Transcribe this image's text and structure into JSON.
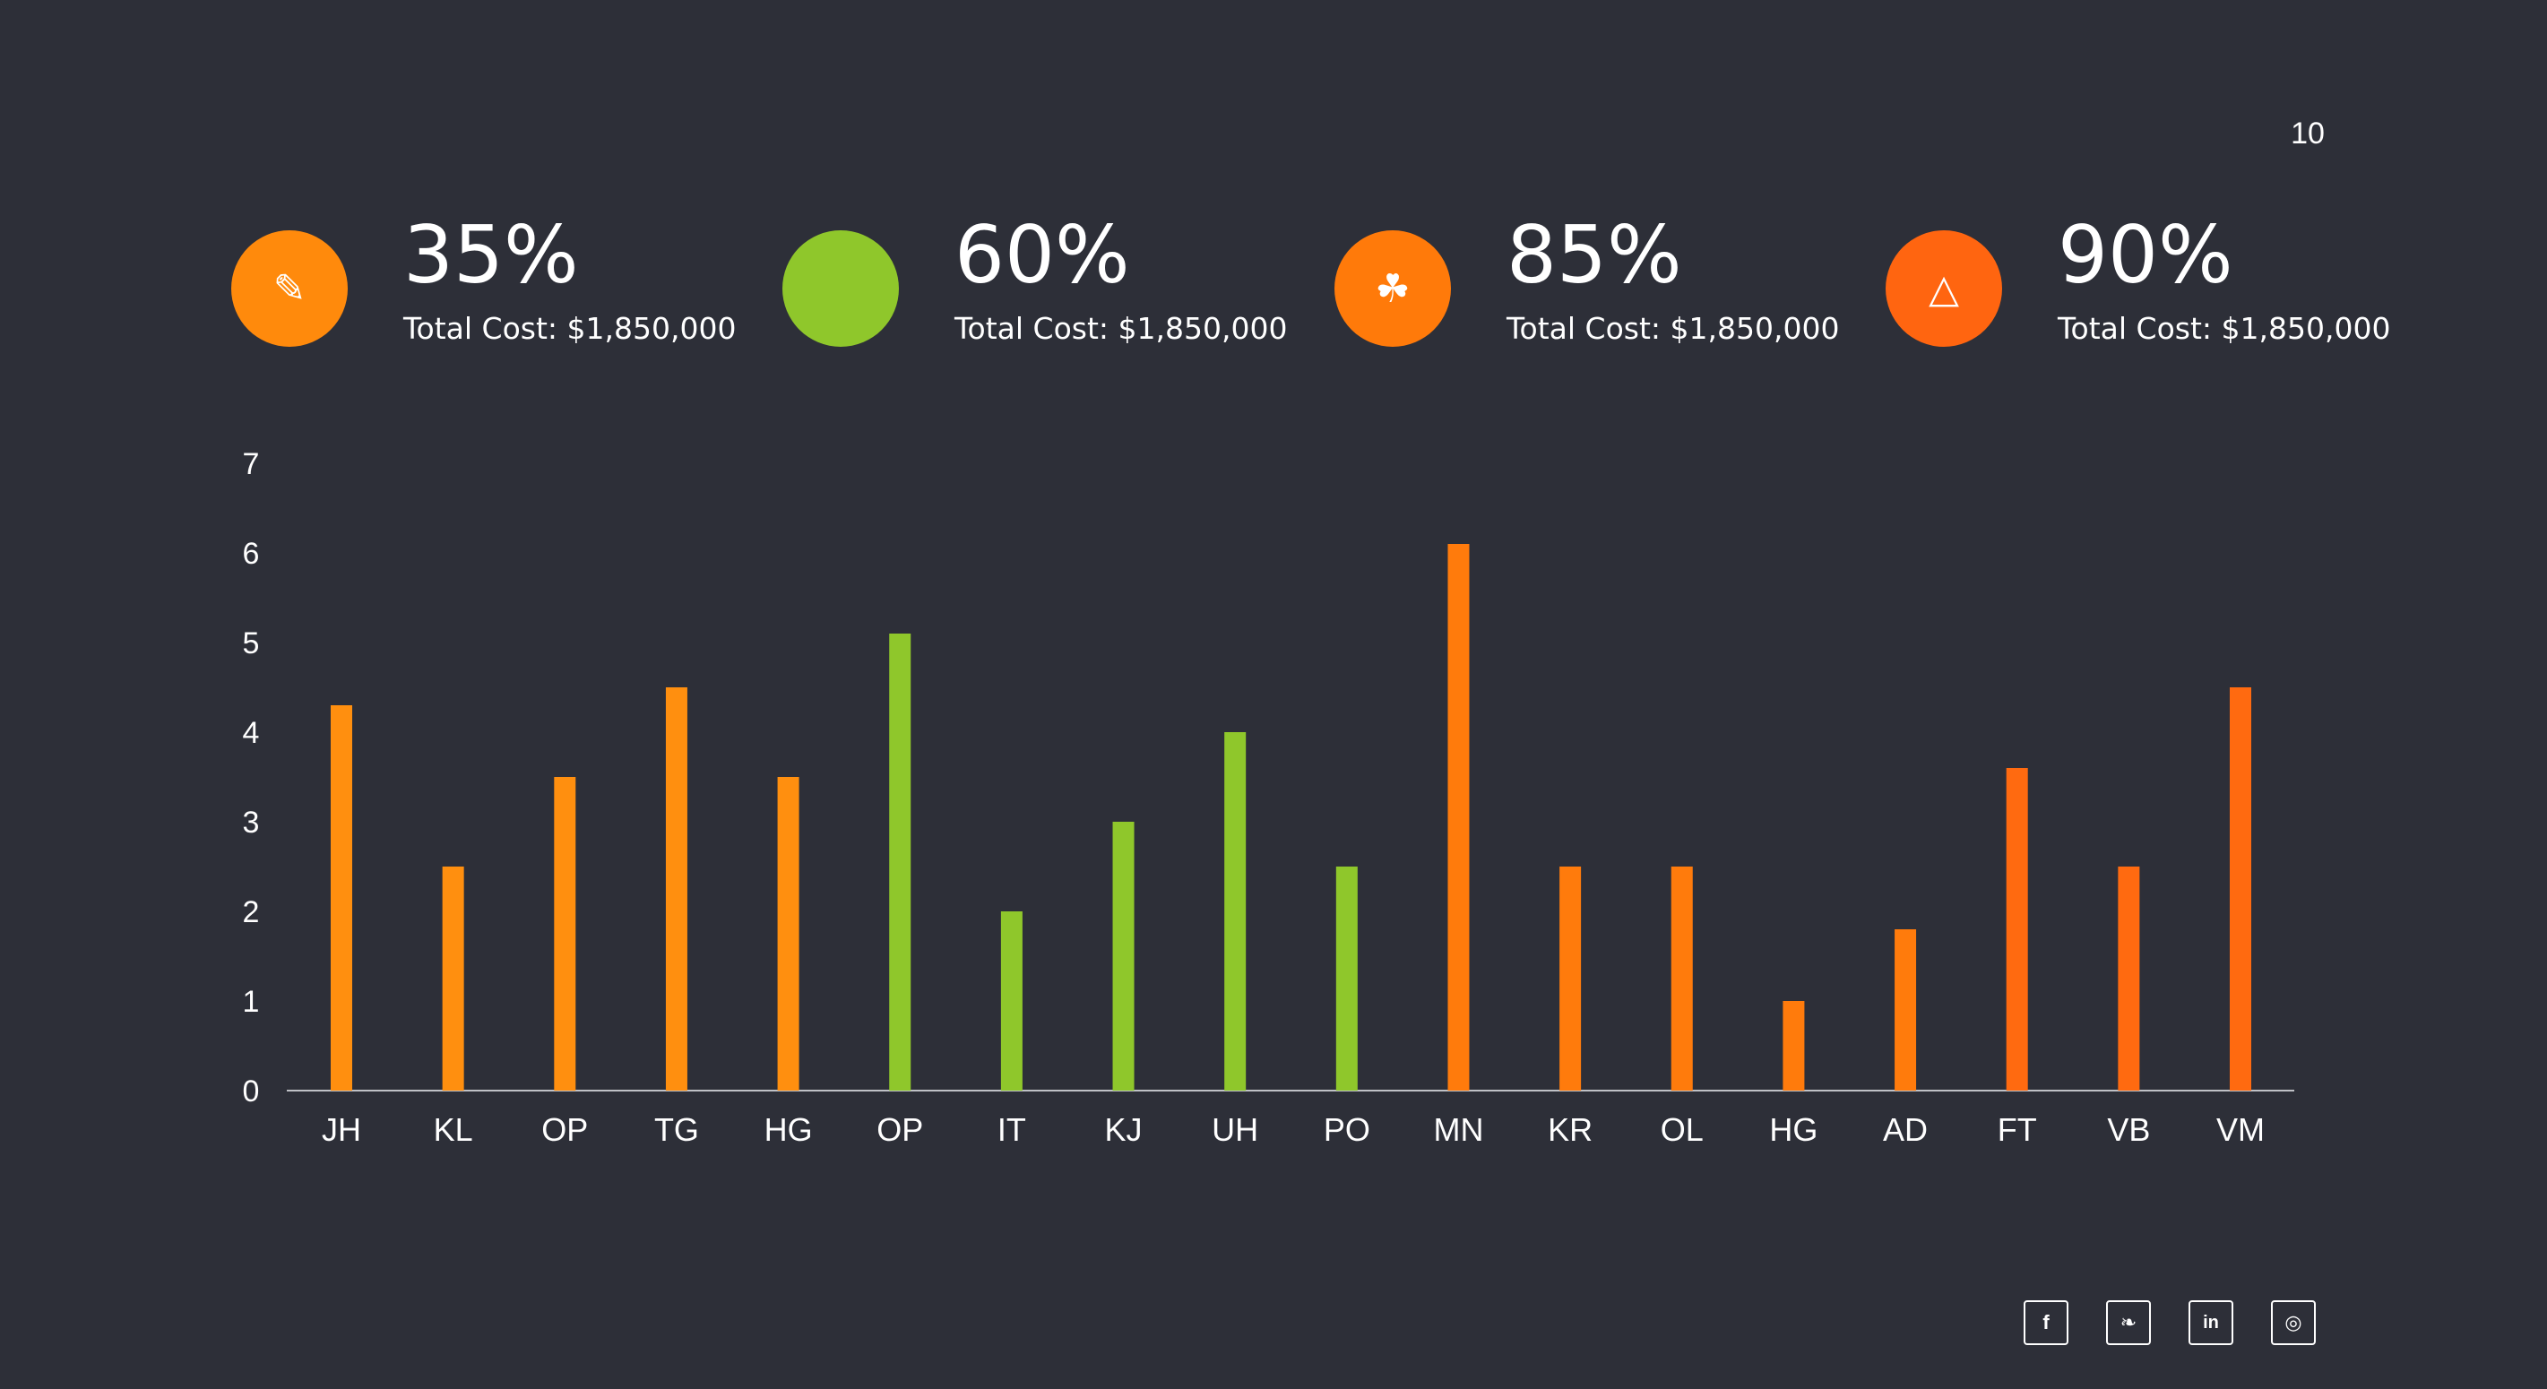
{
  "page_number": "10",
  "stats": [
    {
      "percent": "35%",
      "cost": "Total Cost: $1,850,000",
      "icon": "pen-icon",
      "glyph": "✎",
      "color": "#ff8a0c"
    },
    {
      "percent": "60%",
      "cost": "Total Cost: $1,850,000",
      "icon": "blank-icon",
      "glyph": "",
      "color": "#8fc72b"
    },
    {
      "percent": "85%",
      "cost": "Total Cost: $1,850,000",
      "icon": "tree-icon",
      "glyph": "☘",
      "color": "#ff7a0a"
    },
    {
      "percent": "90%",
      "cost": "Total Cost: $1,850,000",
      "icon": "triangle-icon",
      "glyph": "△",
      "color": "#ff6510"
    }
  ],
  "chart_data": {
    "type": "bar",
    "categories": [
      "JH",
      "KL",
      "OP",
      "TG",
      "HG",
      "OP",
      "IT",
      "KJ",
      "UH",
      "PO",
      "MN",
      "KR",
      "OL",
      "HG",
      "AD",
      "FT",
      "VB",
      "VM"
    ],
    "values": [
      4.3,
      2.5,
      3.5,
      4.5,
      3.5,
      5.1,
      2.0,
      3.0,
      4.0,
      2.5,
      6.1,
      2.5,
      2.5,
      1.0,
      1.8,
      3.6,
      2.5,
      4.5
    ],
    "colors": [
      "#ff8f0f",
      "#ff8f0f",
      "#ff8f0f",
      "#ff8f0f",
      "#ff8f0f",
      "#8fc72b",
      "#8fc72b",
      "#8fc72b",
      "#8fc72b",
      "#8fc72b",
      "#ff7b0c",
      "#ff7b0c",
      "#ff7b0c",
      "#ff7b0c",
      "#ff7b0c",
      "#ff6a10",
      "#ff6a10",
      "#ff6a10"
    ],
    "yticks": [
      "0",
      "1",
      "2",
      "3",
      "4",
      "5",
      "6",
      "7"
    ],
    "ylim": [
      0,
      7
    ],
    "title": "",
    "xlabel": "",
    "ylabel": "",
    "grid": false
  },
  "social": [
    {
      "icon": "facebook-icon",
      "glyph": "f"
    },
    {
      "icon": "twitter-icon",
      "glyph": "❧"
    },
    {
      "icon": "linkedin-icon",
      "glyph": "in"
    },
    {
      "icon": "instagram-icon",
      "glyph": "◎"
    }
  ]
}
